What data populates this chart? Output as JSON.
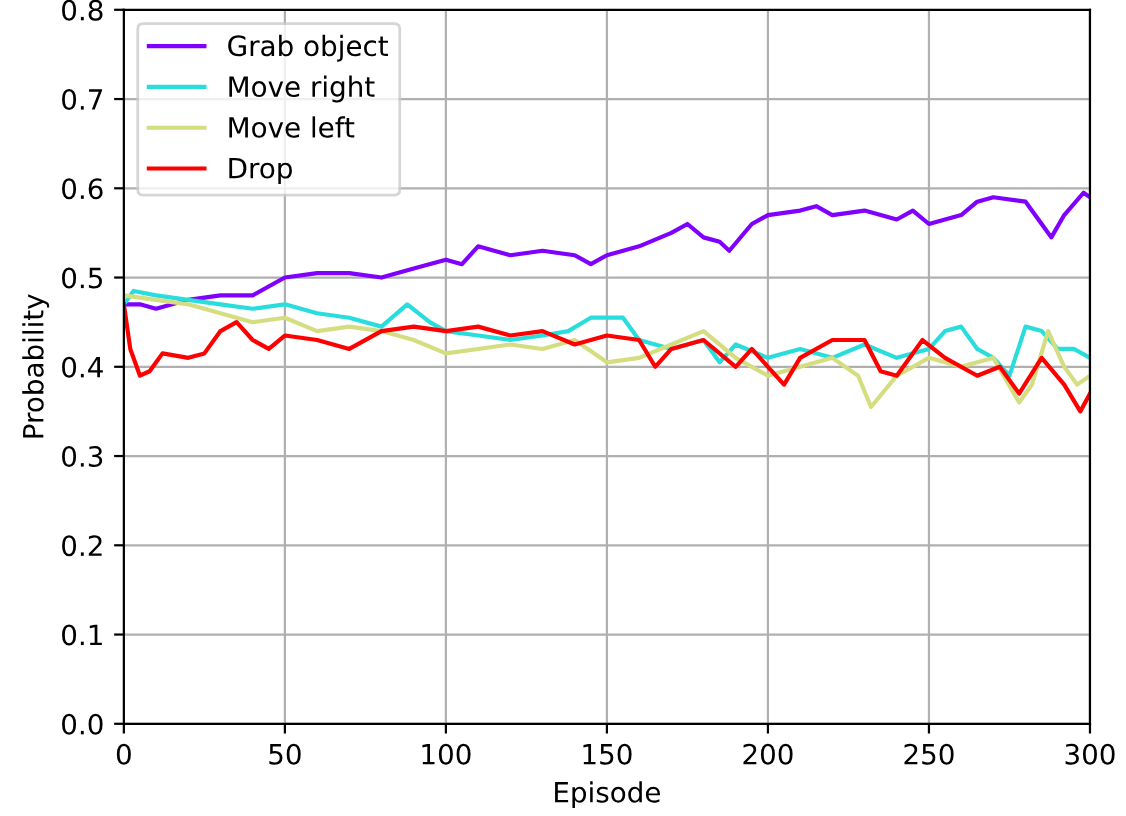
{
  "chart_data": {
    "type": "line",
    "xlabel": "Episode",
    "ylabel": "Probability",
    "xlim": [
      0,
      300
    ],
    "xticks": [
      0,
      50,
      100,
      150,
      200,
      250,
      300
    ],
    "ylim": [
      0,
      0.8
    ],
    "yticks": [
      {
        "value": 0,
        "label": "0.0"
      },
      0.1,
      0.2,
      0.3,
      0.4,
      0.5,
      0.6,
      0.7,
      0.8
    ],
    "grid": true,
    "legend": "top left",
    "marker": "none",
    "line_style": "solid",
    "series": [
      {
        "name": "Grab object",
        "color": "#8000ff",
        "x": [
          0,
          5,
          10,
          20,
          30,
          40,
          50,
          60,
          70,
          80,
          90,
          100,
          105,
          110,
          120,
          130,
          140,
          145,
          150,
          160,
          170,
          175,
          180,
          185,
          188,
          195,
          200,
          210,
          215,
          220,
          230,
          240,
          245,
          250,
          260,
          265,
          270,
          280,
          285,
          288,
          292,
          298,
          300
        ],
        "values": [
          0.47,
          0.47,
          0.465,
          0.475,
          0.48,
          0.48,
          0.5,
          0.505,
          0.505,
          0.5,
          0.51,
          0.52,
          0.515,
          0.535,
          0.525,
          0.53,
          0.525,
          0.515,
          0.525,
          0.535,
          0.55,
          0.56,
          0.545,
          0.54,
          0.53,
          0.56,
          0.57,
          0.575,
          0.58,
          0.57,
          0.575,
          0.565,
          0.575,
          0.56,
          0.57,
          0.585,
          0.59,
          0.585,
          0.56,
          0.545,
          0.57,
          0.595,
          0.59
        ]
      },
      {
        "name": "Move right",
        "color": "#2adddd",
        "x": [
          0,
          3,
          10,
          20,
          30,
          40,
          50,
          60,
          70,
          80,
          88,
          95,
          100,
          110,
          120,
          130,
          138,
          145,
          155,
          160,
          170,
          180,
          185,
          190,
          200,
          210,
          220,
          230,
          240,
          250,
          255,
          260,
          265,
          270,
          275,
          280,
          285,
          290,
          295,
          300
        ],
        "values": [
          0.47,
          0.485,
          0.48,
          0.475,
          0.47,
          0.465,
          0.47,
          0.46,
          0.455,
          0.445,
          0.47,
          0.45,
          0.44,
          0.435,
          0.43,
          0.435,
          0.44,
          0.455,
          0.455,
          0.43,
          0.42,
          0.43,
          0.405,
          0.425,
          0.41,
          0.42,
          0.41,
          0.425,
          0.41,
          0.42,
          0.44,
          0.445,
          0.42,
          0.41,
          0.39,
          0.445,
          0.44,
          0.42,
          0.42,
          0.41
        ]
      },
      {
        "name": "Move left",
        "color": "#d4dd80",
        "x": [
          0,
          10,
          20,
          30,
          40,
          50,
          60,
          70,
          80,
          90,
          100,
          110,
          120,
          130,
          140,
          150,
          160,
          170,
          180,
          190,
          200,
          210,
          220,
          228,
          232,
          240,
          250,
          260,
          270,
          278,
          282,
          287,
          292,
          296,
          300
        ],
        "values": [
          0.48,
          0.475,
          0.47,
          0.46,
          0.45,
          0.455,
          0.44,
          0.445,
          0.44,
          0.43,
          0.415,
          0.42,
          0.425,
          0.42,
          0.43,
          0.405,
          0.41,
          0.425,
          0.44,
          0.41,
          0.39,
          0.4,
          0.41,
          0.39,
          0.355,
          0.39,
          0.41,
          0.4,
          0.41,
          0.36,
          0.38,
          0.44,
          0.4,
          0.38,
          0.39
        ]
      },
      {
        "name": "Drop",
        "color": "#ff0000",
        "x": [
          0,
          2,
          5,
          8,
          12,
          20,
          25,
          30,
          35,
          40,
          45,
          50,
          60,
          70,
          80,
          90,
          100,
          110,
          120,
          130,
          140,
          150,
          160,
          165,
          170,
          180,
          190,
          195,
          200,
          205,
          210,
          220,
          230,
          235,
          240,
          248,
          255,
          265,
          272,
          278,
          285,
          292,
          297,
          300
        ],
        "values": [
          0.47,
          0.42,
          0.39,
          0.395,
          0.415,
          0.41,
          0.415,
          0.44,
          0.45,
          0.43,
          0.42,
          0.435,
          0.43,
          0.42,
          0.44,
          0.445,
          0.44,
          0.445,
          0.435,
          0.44,
          0.425,
          0.435,
          0.43,
          0.4,
          0.42,
          0.43,
          0.4,
          0.42,
          0.4,
          0.38,
          0.41,
          0.43,
          0.43,
          0.395,
          0.39,
          0.43,
          0.41,
          0.39,
          0.4,
          0.37,
          0.41,
          0.38,
          0.35,
          0.37
        ]
      }
    ]
  }
}
